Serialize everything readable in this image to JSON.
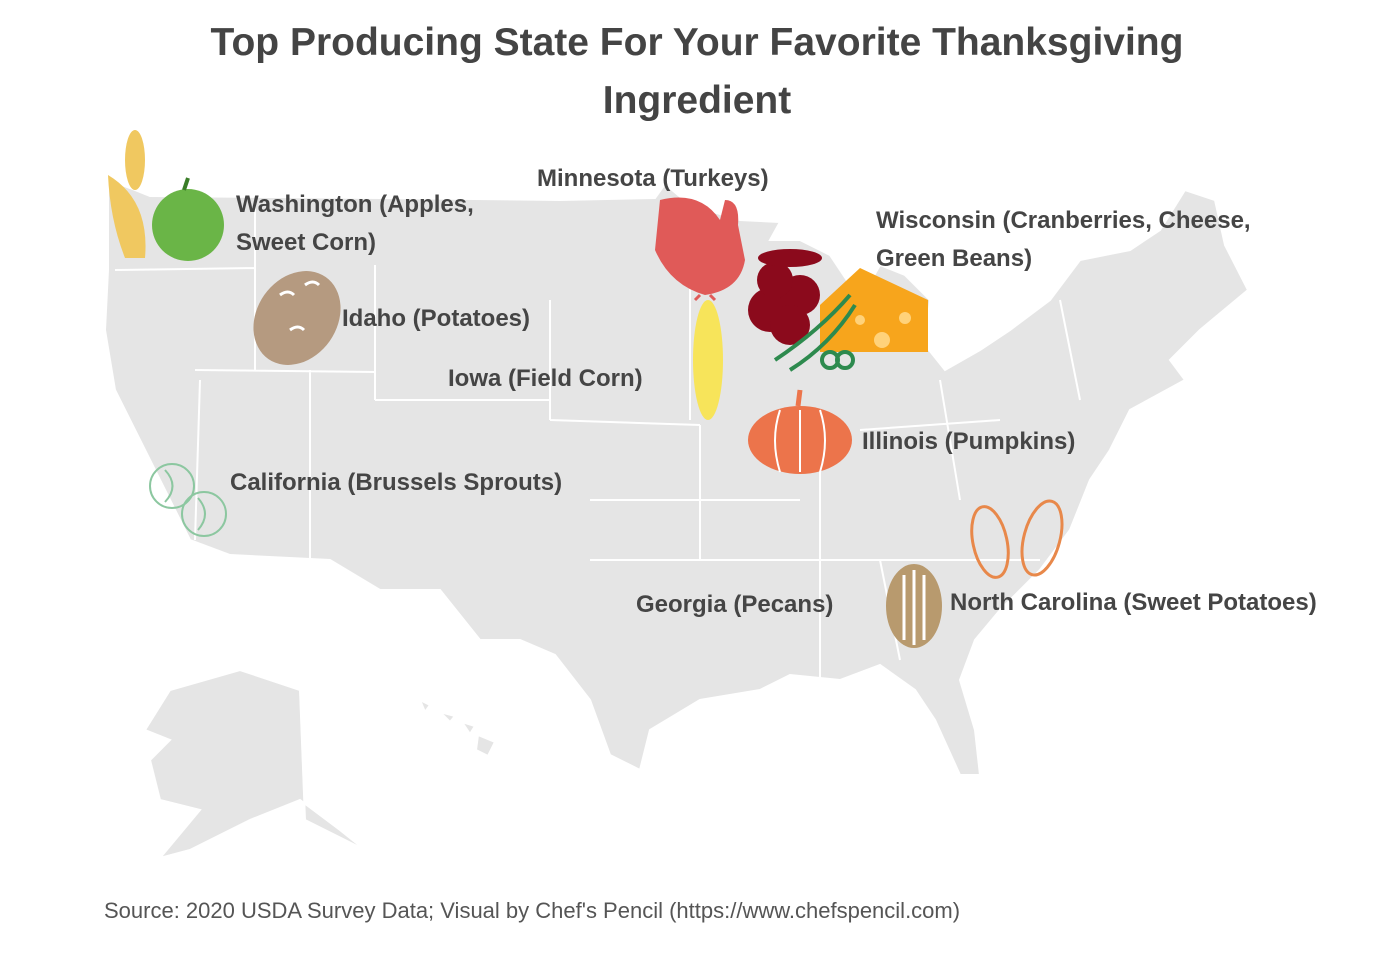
{
  "title": "Top Producing State For Your Favorite Thanksgiving Ingredient",
  "labels": [
    {
      "lines": [
        "Washington (Apples,",
        "Sweet Corn)"
      ]
    },
    {
      "lines": [
        "Idaho (Potatoes)"
      ]
    },
    {
      "lines": [
        "Minnesota (Turkeys)"
      ]
    },
    {
      "lines": [
        "Wisconsin (Cranberries, Cheese,",
        "Green Beans)"
      ]
    },
    {
      "lines": [
        "Iowa (Field Corn)"
      ]
    },
    {
      "lines": [
        "Illinois (Pumpkins)"
      ]
    },
    {
      "lines": [
        "California (Brussels Sprouts)"
      ]
    },
    {
      "lines": [
        "Georgia (Pecans)"
      ]
    },
    {
      "lines": [
        "North Carolina (Sweet Potatoes)"
      ]
    }
  ],
  "source": "Source: 2020 USDA Survey Data; Visual by Chef's Pencil (https://www.chefspencil.com)"
}
